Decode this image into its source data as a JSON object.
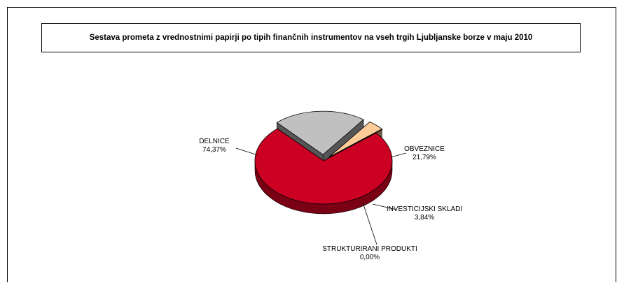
{
  "chart_data": {
    "type": "pie",
    "title": "Sestava prometa z vrednostnimi papirji po tipih finančnih instrumentov na vseh trgih Ljubljanske borze v maju 2010",
    "slices": [
      {
        "label": "DELNICE",
        "value": 74.37,
        "pct_text": "74,37%",
        "color": "#cc0022"
      },
      {
        "label": "OBVEZNICE",
        "value": 21.79,
        "pct_text": "21,79%",
        "color": "#c0c0c0"
      },
      {
        "label": "INVESTICIJSKI SKLADI",
        "value": 3.84,
        "pct_text": "3,84%",
        "color": "#ffcc99"
      },
      {
        "label": "STRUKTURIRANI PRODUKTI",
        "value": 0.0,
        "pct_text": "0,00%",
        "color": "#ff9966"
      }
    ]
  }
}
